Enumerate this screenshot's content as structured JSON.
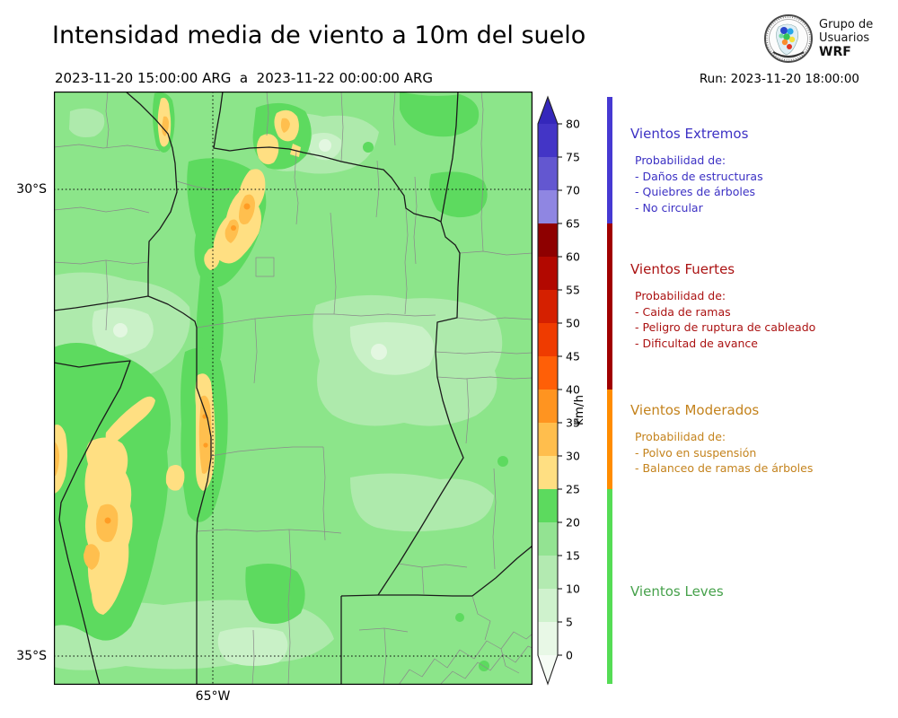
{
  "header": {
    "title": "Intensidad media de viento a 10m del suelo",
    "period": "2023-11-20 15:00:00 ARG  a  2023-11-22 00:00:00 ARG",
    "run_label": "Run: 2023-11-20 18:00:00",
    "logo": {
      "line1": "Grupo de",
      "line2": "Usuarios",
      "line3": "WRF"
    }
  },
  "map": {
    "lat_labels": [
      "30°S",
      "35°S"
    ],
    "lon_labels": [
      "65°W"
    ]
  },
  "colorbar": {
    "unit": "km/h",
    "ticks": [
      0,
      5,
      10,
      15,
      20,
      25,
      30,
      35,
      40,
      45,
      50,
      55,
      60,
      65,
      70,
      75,
      80
    ],
    "over_color": "#3427bb",
    "under_color": "#f6fcf5",
    "segments": [
      {
        "from": 0,
        "to": 5,
        "color": "#e8f8e6"
      },
      {
        "from": 5,
        "to": 10,
        "color": "#cff2cd"
      },
      {
        "from": 10,
        "to": 15,
        "color": "#b3eab1"
      },
      {
        "from": 15,
        "to": 20,
        "color": "#93e392"
      },
      {
        "from": 20,
        "to": 25,
        "color": "#5cda5e"
      },
      {
        "from": 25,
        "to": 30,
        "color": "#ffdf82"
      },
      {
        "from": 30,
        "to": 35,
        "color": "#ffbe4d"
      },
      {
        "from": 35,
        "to": 40,
        "color": "#ff9420"
      },
      {
        "from": 40,
        "to": 45,
        "color": "#ff5f07"
      },
      {
        "from": 45,
        "to": 50,
        "color": "#ef3b00"
      },
      {
        "from": 50,
        "to": 55,
        "color": "#d52000"
      },
      {
        "from": 55,
        "to": 60,
        "color": "#b20800"
      },
      {
        "from": 60,
        "to": 65,
        "color": "#8e0000"
      },
      {
        "from": 65,
        "to": 70,
        "color": "#8f86e2"
      },
      {
        "from": 70,
        "to": 75,
        "color": "#6357d0"
      },
      {
        "from": 75,
        "to": 80,
        "color": "#4335c6"
      }
    ]
  },
  "categories": [
    {
      "name": "Vientos Extremos",
      "text_color": "#3c31c4",
      "bar_color": "#4639d2",
      "range": {
        "min": 65,
        "max": null
      },
      "header": "Probabilidad de:",
      "items": [
        "- Daños de estructuras",
        "- Quiebres de árboles",
        "- No circular"
      ]
    },
    {
      "name": "Vientos Fuertes",
      "text_color": "#ab1212",
      "bar_color": "#a00000",
      "range": {
        "min": 40,
        "max": 65
      },
      "header": "Probabilidad de:",
      "items": [
        "- Caida de ramas",
        "- Peligro de ruptura de cableado",
        "- Dificultad de avance"
      ]
    },
    {
      "name": "Vientos Moderados",
      "text_color": "#c4831d",
      "bar_color": "#ff8c00",
      "range": {
        "min": 25,
        "max": 40
      },
      "header": "Probabilidad de:",
      "items": [
        "- Polvo en suspensión",
        "- Balanceo de ramas de árboles"
      ]
    },
    {
      "name": "Vientos Leves",
      "text_color": "#46a14b",
      "bar_color": "#55dc55",
      "range": {
        "min": null,
        "max": 25
      },
      "header": null,
      "items": []
    }
  ]
}
